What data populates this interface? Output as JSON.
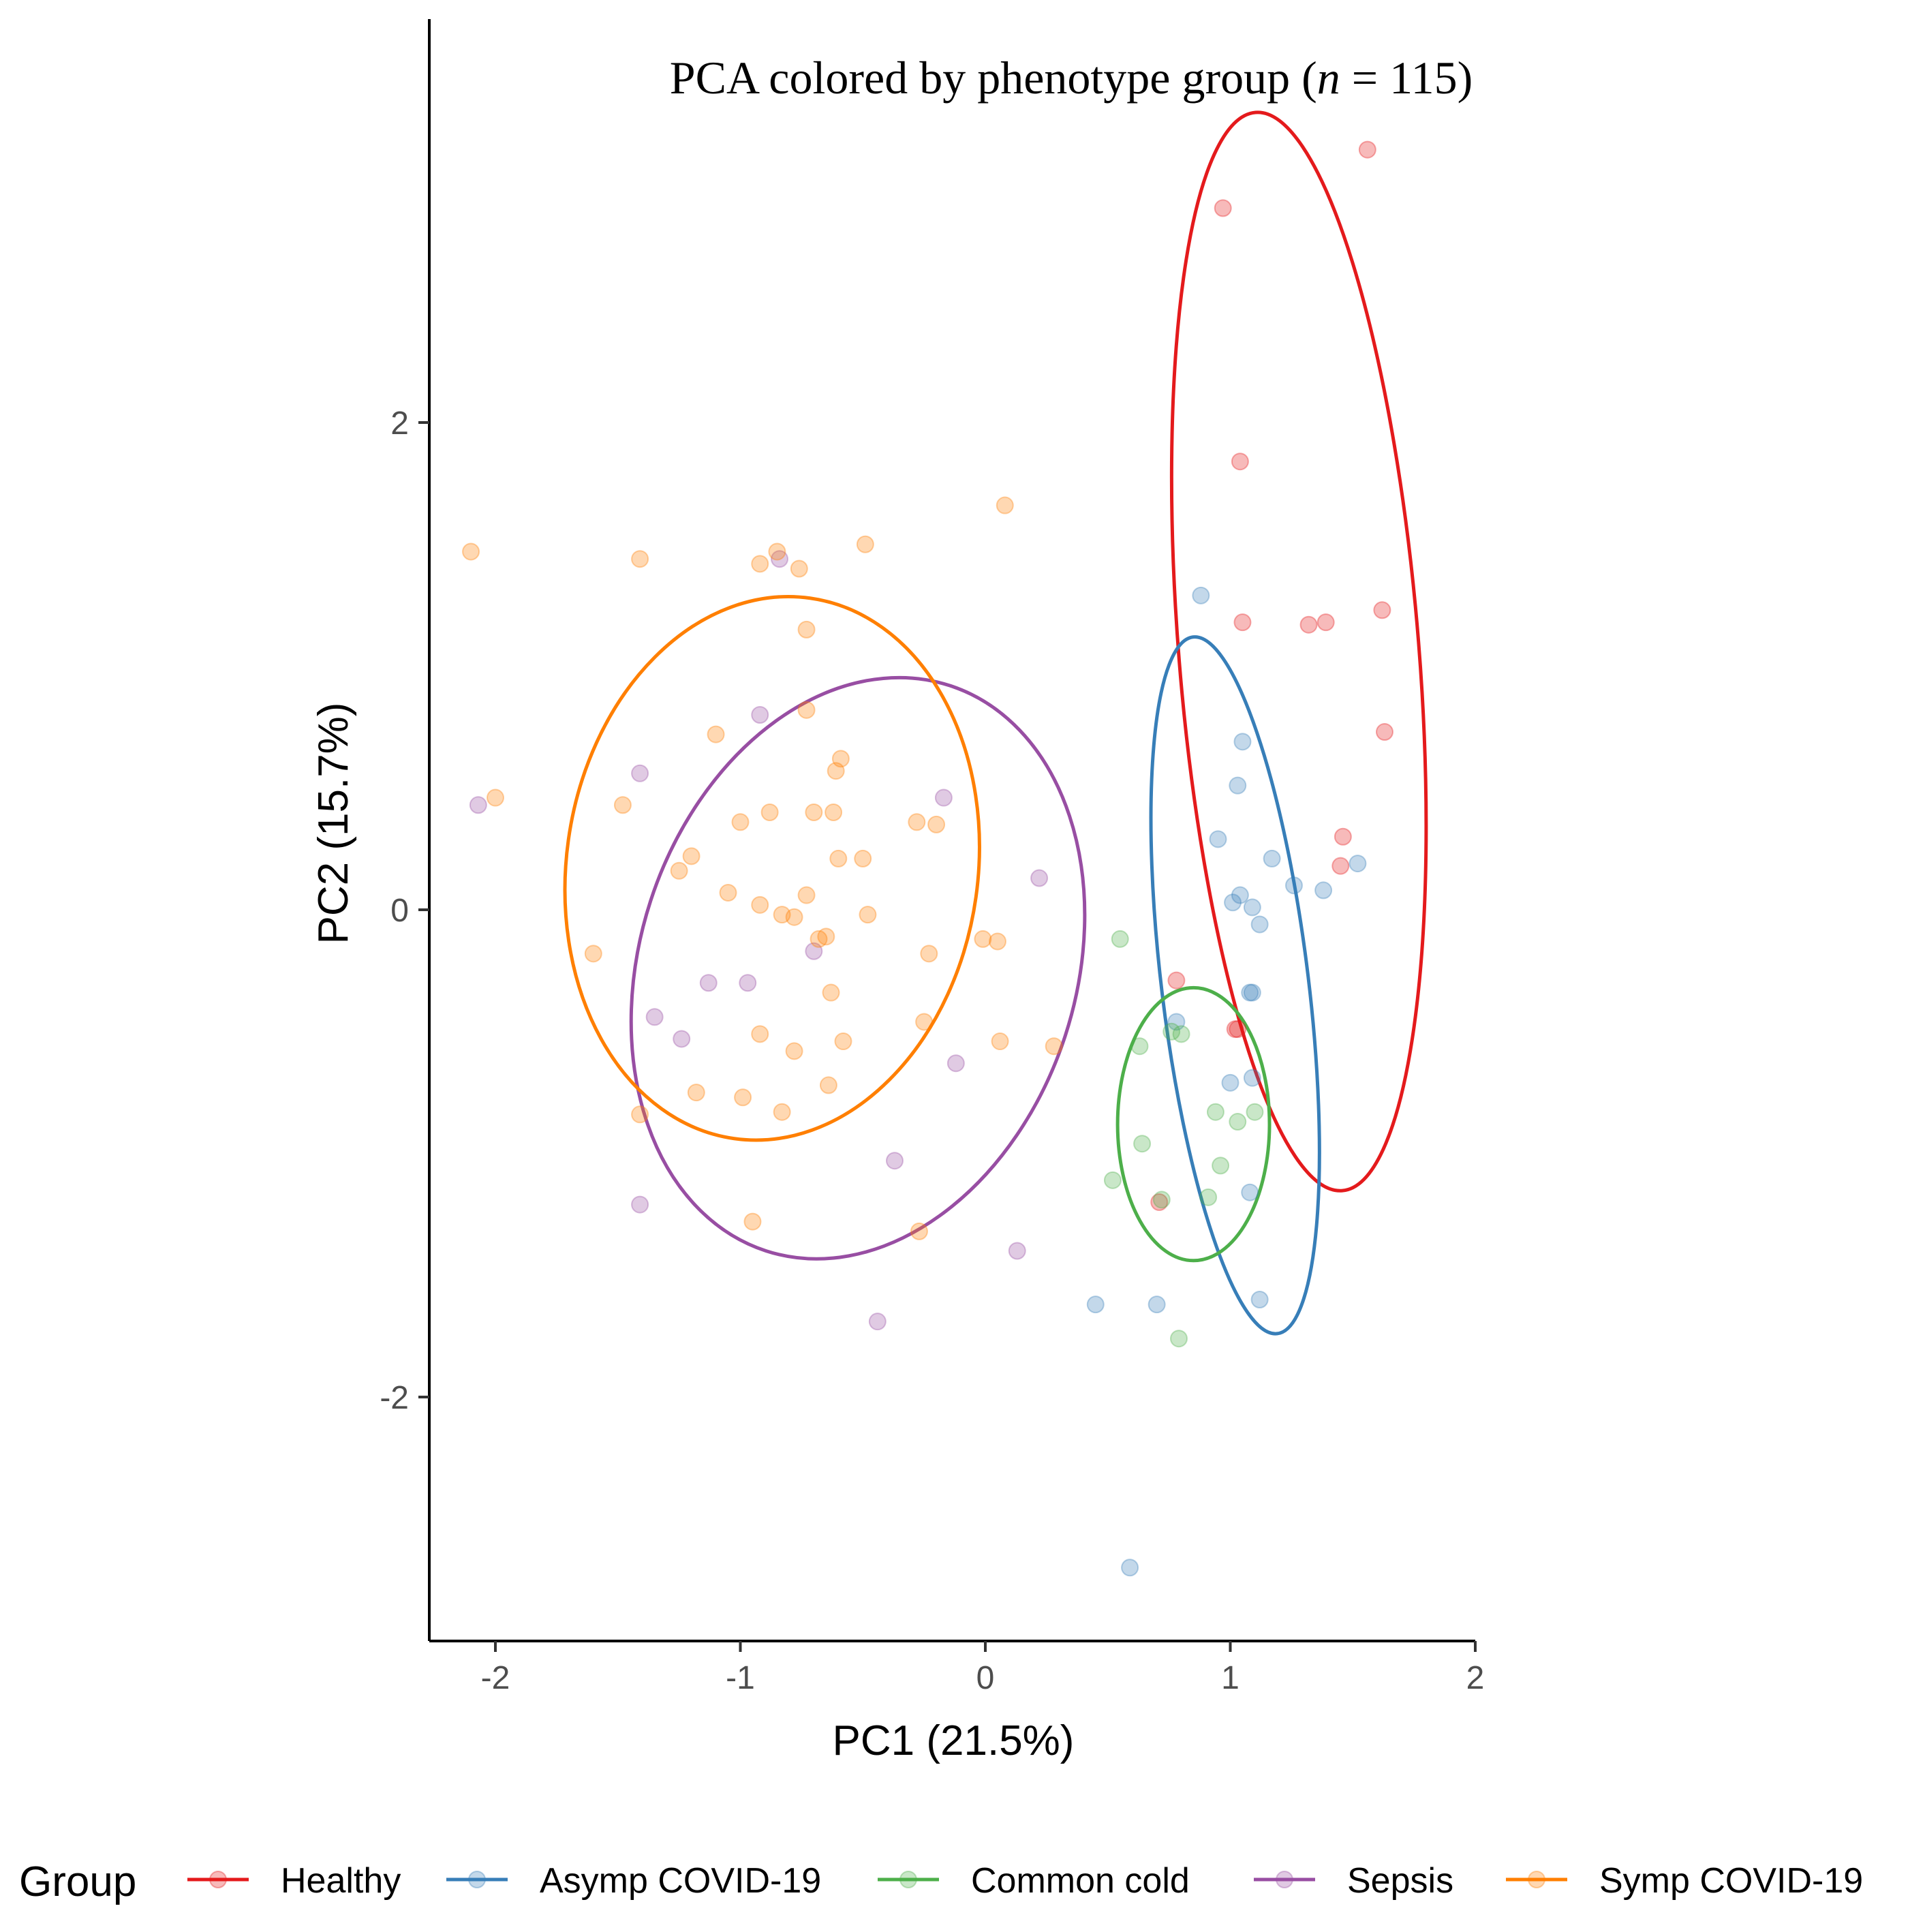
{
  "chart_data": {
    "type": "scatter",
    "title_main": "PCA colored by phenotype group (",
    "title_n": "n",
    "title_eq": " = 115)",
    "xlabel": "PC1 (21.5%)",
    "ylabel": "PC2 (15.7%)",
    "xlim": [
      -2.3,
      2.0
    ],
    "ylim": [
      -3.0,
      3.65
    ],
    "xticks": [
      -2,
      -1,
      0,
      1,
      2
    ],
    "yticks": [
      -2,
      0,
      2
    ],
    "xtick_labels": [
      "-2",
      "-1",
      "0",
      "1",
      "2"
    ],
    "ytick_labels": [
      "-2",
      "0",
      "2"
    ],
    "legend": {
      "title": "Group",
      "position": "bottom"
    },
    "series": [
      {
        "name": "Healthy",
        "color": "#e41a1c",
        "ellipse": {
          "cx": 1.28,
          "cy": 1.06,
          "rx": 0.49,
          "ry": 2.22,
          "angle_deg": -4.6
        },
        "points": [
          [
            1.56,
            3.12
          ],
          [
            0.97,
            2.88
          ],
          [
            1.04,
            1.84
          ],
          [
            1.62,
            1.23
          ],
          [
            1.05,
            1.18
          ],
          [
            1.32,
            1.17
          ],
          [
            1.39,
            1.18
          ],
          [
            1.63,
            0.73
          ],
          [
            1.46,
            0.3
          ],
          [
            1.45,
            0.18
          ],
          [
            0.78,
            -0.29
          ],
          [
            1.02,
            -0.49
          ],
          [
            1.03,
            -0.49
          ],
          [
            0.71,
            -1.2
          ]
        ]
      },
      {
        "name": "Asymp COVID-19",
        "color": "#377eb8",
        "ellipse": {
          "cx": 1.02,
          "cy": -0.31,
          "rx": 0.3,
          "ry": 1.44,
          "angle_deg": -6.9
        },
        "points": [
          [
            0.88,
            1.29
          ],
          [
            1.05,
            0.69
          ],
          [
            1.03,
            0.51
          ],
          [
            0.95,
            0.29
          ],
          [
            1.17,
            0.21
          ],
          [
            1.26,
            0.1
          ],
          [
            1.38,
            0.08
          ],
          [
            1.52,
            0.19
          ],
          [
            1.04,
            0.06
          ],
          [
            1.01,
            0.03
          ],
          [
            1.09,
            0.01
          ],
          [
            1.12,
            -0.06
          ],
          [
            1.08,
            -0.34
          ],
          [
            1.09,
            -0.34
          ],
          [
            0.78,
            -0.46
          ],
          [
            1.09,
            -0.69
          ],
          [
            1.0,
            -0.71
          ],
          [
            1.08,
            -1.16
          ],
          [
            0.45,
            -1.62
          ],
          [
            0.7,
            -1.62
          ],
          [
            1.12,
            -1.6
          ],
          [
            0.59,
            -2.7
          ]
        ]
      },
      {
        "name": "Common cold",
        "color": "#4daf4a",
        "ellipse": {
          "cx": 0.85,
          "cy": -0.88,
          "rx": 0.31,
          "ry": 0.56,
          "angle_deg": 0
        },
        "points": [
          [
            0.55,
            -0.12
          ],
          [
            0.76,
            -0.5
          ],
          [
            0.8,
            -0.51
          ],
          [
            0.63,
            -0.56
          ],
          [
            0.94,
            -0.83
          ],
          [
            1.03,
            -0.87
          ],
          [
            1.1,
            -0.83
          ],
          [
            0.64,
            -0.96
          ],
          [
            0.96,
            -1.05
          ],
          [
            0.52,
            -1.11
          ],
          [
            0.72,
            -1.19
          ],
          [
            0.91,
            -1.18
          ],
          [
            0.79,
            -1.76
          ]
        ]
      },
      {
        "name": "Sepsis",
        "color": "#984ea3",
        "ellipse": {
          "cx": -0.52,
          "cy": -0.24,
          "rx": 0.89,
          "ry": 1.22,
          "angle_deg": 18
        },
        "points": [
          [
            -0.84,
            1.44
          ],
          [
            -0.92,
            0.8
          ],
          [
            -1.41,
            0.56
          ],
          [
            -2.07,
            0.43
          ],
          [
            -0.17,
            0.46
          ],
          [
            0.22,
            0.13
          ],
          [
            -0.7,
            -0.17
          ],
          [
            -1.13,
            -0.3
          ],
          [
            -0.97,
            -0.3
          ],
          [
            -1.35,
            -0.44
          ],
          [
            -1.24,
            -0.53
          ],
          [
            -0.12,
            -0.63
          ],
          [
            -0.37,
            -1.03
          ],
          [
            -1.41,
            -1.21
          ],
          [
            0.13,
            -1.4
          ],
          [
            -0.44,
            -1.69
          ]
        ]
      },
      {
        "name": "Symp COVID-19",
        "color": "#ff7f00",
        "ellipse": {
          "cx": -0.87,
          "cy": 0.17,
          "rx": 0.84,
          "ry": 1.12,
          "angle_deg": 8
        },
        "points": [
          [
            -2.1,
            1.47
          ],
          [
            -1.41,
            1.44
          ],
          [
            -0.85,
            1.47
          ],
          [
            -0.49,
            1.5
          ],
          [
            -0.92,
            1.42
          ],
          [
            -0.76,
            1.4
          ],
          [
            0.08,
            1.66
          ],
          [
            -0.73,
            1.15
          ],
          [
            -0.73,
            0.82
          ],
          [
            -1.1,
            0.72
          ],
          [
            -0.59,
            0.62
          ],
          [
            -0.61,
            0.57
          ],
          [
            -2.0,
            0.46
          ],
          [
            -1.48,
            0.43
          ],
          [
            -0.7,
            0.4
          ],
          [
            -0.88,
            0.4
          ],
          [
            -0.62,
            0.4
          ],
          [
            -1.0,
            0.36
          ],
          [
            -0.28,
            0.36
          ],
          [
            -0.2,
            0.35
          ],
          [
            -1.2,
            0.22
          ],
          [
            -0.5,
            0.21
          ],
          [
            -0.6,
            0.21
          ],
          [
            -1.25,
            0.16
          ],
          [
            -1.05,
            0.07
          ],
          [
            -0.73,
            0.06
          ],
          [
            -0.92,
            0.02
          ],
          [
            -0.83,
            -0.02
          ],
          [
            -0.78,
            -0.03
          ],
          [
            -0.48,
            -0.02
          ],
          [
            -0.65,
            -0.11
          ],
          [
            -0.68,
            -0.12
          ],
          [
            -1.6,
            -0.18
          ],
          [
            -0.01,
            -0.12
          ],
          [
            0.05,
            -0.13
          ],
          [
            -0.23,
            -0.18
          ],
          [
            -0.63,
            -0.34
          ],
          [
            -0.25,
            -0.46
          ],
          [
            -0.92,
            -0.51
          ],
          [
            -0.58,
            -0.54
          ],
          [
            0.06,
            -0.54
          ],
          [
            0.28,
            -0.56
          ],
          [
            -0.78,
            -0.58
          ],
          [
            -0.64,
            -0.72
          ],
          [
            -1.18,
            -0.75
          ],
          [
            -0.99,
            -0.77
          ],
          [
            -0.83,
            -0.83
          ],
          [
            -1.41,
            -0.84
          ],
          [
            -0.95,
            -1.28
          ],
          [
            -0.27,
            -1.32
          ]
        ]
      }
    ]
  }
}
